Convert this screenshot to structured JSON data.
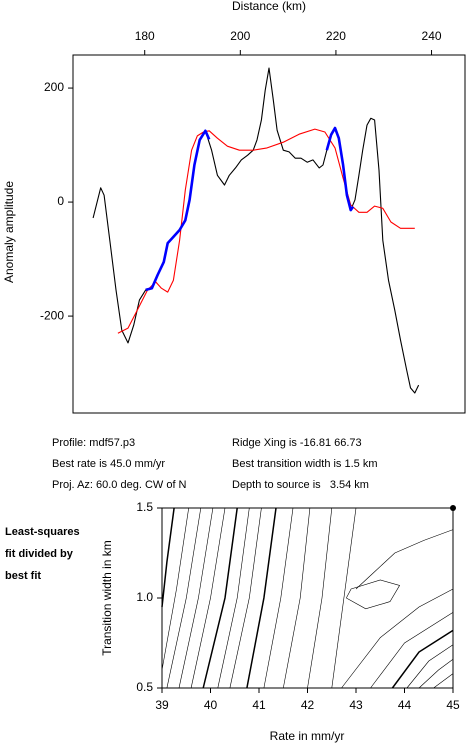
{
  "chart_data": [
    {
      "type": "line",
      "xlabel": "Distance (km)",
      "ylabel": "Anomaly amplitude",
      "xlim": [
        165,
        247
      ],
      "ylim": [
        -370,
        258
      ],
      "xticks": [
        180,
        200,
        220,
        240
      ],
      "yticks": [
        -200,
        0,
        200
      ],
      "series": [
        {
          "color": "#000000",
          "x": [
            169.2,
            170.8,
            171.5,
            172.7,
            174,
            175.2,
            176.5,
            177.7,
            178.9,
            180.2,
            181.5,
            182.7,
            184,
            184.8,
            186,
            187.3,
            188.5,
            189.4,
            190.4,
            191.5,
            192.7,
            194,
            195.2,
            196.7,
            197.7,
            199,
            200.2,
            201.5,
            202.7,
            203.5,
            204.4,
            205.2,
            206,
            206.9,
            207.7,
            209,
            210.2,
            211.5,
            212.7,
            214,
            215.2,
            216.5,
            217.3,
            218.1,
            219,
            219.8,
            220.6,
            221.5,
            222.3,
            223.1,
            224,
            224.8,
            225.6,
            226.5,
            227.3,
            228.1,
            229,
            229.8,
            231,
            232.3,
            233.5,
            234.8,
            235.6,
            236.5,
            237.3
          ],
          "values": [
            -28,
            25,
            12,
            -67,
            -154,
            -225,
            -247,
            -216,
            -172,
            -154,
            -151,
            -128,
            -105,
            -72,
            -61,
            -49,
            -32,
            4,
            65,
            109,
            125,
            91,
            47,
            30,
            47,
            60,
            74,
            82,
            91,
            109,
            144,
            196,
            235,
            179,
            126,
            91,
            88,
            77,
            77,
            70,
            74,
            60,
            65,
            91,
            118,
            130,
            112,
            65,
            12,
            -14,
            4,
            47,
            91,
            135,
            147,
            144,
            56,
            -67,
            -137,
            -189,
            -242,
            -295,
            -326,
            -335,
            -321
          ]
        },
        {
          "color": "#ff0000",
          "x": [
            174.4,
            176.5,
            178.5,
            180.6,
            182.3,
            183.5,
            184.8,
            186,
            187.3,
            188.5,
            189.8,
            191,
            192.3,
            193.5,
            195.2,
            197.3,
            199.8,
            202.7,
            205.6,
            209,
            212.3,
            215.6,
            217.7,
            219.8,
            221.5,
            223.1,
            224.8,
            226.5,
            228.1,
            229.8,
            231.5,
            233.5,
            236.5
          ],
          "values": [
            -230,
            -221,
            -189,
            -154,
            -140,
            -151,
            -158,
            -137,
            -67,
            21,
            91,
            116,
            123,
            125,
            112,
            98,
            91,
            91,
            95,
            105,
            119,
            128,
            123,
            95,
            42,
            -5,
            -18,
            -18,
            -7,
            -11,
            -35,
            -46,
            -46
          ]
        },
        {
          "color": "#0000ff",
          "x": [
            180.2,
            181.5,
            182.7,
            184,
            184.8,
            186,
            187.3,
            188.5,
            189.4,
            190.4,
            191.5,
            192.7,
            193.5,
            206,
            218.1,
            219,
            219.8,
            220.6,
            221.5,
            222.3,
            223.1,
            223.6
          ],
          "values": [
            -154,
            -151,
            -128,
            -105,
            -72,
            -61,
            -49,
            -32,
            4,
            65,
            109,
            125,
            110,
            null,
            91,
            118,
            130,
            112,
            65,
            12,
            -14,
            -8
          ]
        }
      ],
      "annotations": [
        "Profile: mdf57.p3",
        "Ridge Xing is -16.81 66.73",
        "Best rate is 45.0 mm/yr",
        "Best transition width is 1.5 km",
        "Proj. Az: 60.0 deg. CW of N",
        "Depth to source is   3.54 km"
      ]
    },
    {
      "type": "contour",
      "xlabel": "Rate in mm/yr",
      "ylabel": "Transition width in km",
      "side_label": [
        "Least-squares",
        "fit divided by",
        "best fit"
      ],
      "xlim": [
        39,
        45
      ],
      "ylim": [
        0.5,
        1.5
      ],
      "xticks": [
        39,
        40,
        41,
        42,
        43,
        44,
        45
      ],
      "yticks": [
        0.5,
        {
          "value": 1,
          "label": "1.0"
        },
        1.5
      ],
      "color": "#000000",
      "lines": [
        {
          "bold": true,
          "x": [
            39,
            39.1,
            39.25
          ],
          "values": [
            0.95,
            1.2,
            1.5
          ]
        },
        {
          "bold": false,
          "x": [
            39,
            39.3,
            39.55
          ],
          "values": [
            0.6,
            1.05,
            1.5
          ]
        },
        {
          "bold": false,
          "x": [
            39.1,
            39.5,
            39.8
          ],
          "values": [
            0.5,
            1.0,
            1.5
          ]
        },
        {
          "bold": false,
          "x": [
            39.35,
            39.75,
            40.05
          ],
          "values": [
            0.5,
            1.0,
            1.5
          ]
        },
        {
          "bold": false,
          "x": [
            39.6,
            40.0,
            40.3
          ],
          "values": [
            0.5,
            1.0,
            1.5
          ]
        },
        {
          "bold": true,
          "x": [
            39.85,
            40.3,
            40.55
          ],
          "values": [
            0.5,
            1.0,
            1.5
          ]
        },
        {
          "bold": false,
          "x": [
            40.15,
            40.55,
            40.8
          ],
          "values": [
            0.5,
            1.0,
            1.5
          ]
        },
        {
          "bold": false,
          "x": [
            40.4,
            40.8,
            41.05
          ],
          "values": [
            0.5,
            1.0,
            1.5
          ]
        },
        {
          "bold": true,
          "x": [
            40.75,
            41.1,
            41.35
          ],
          "values": [
            0.5,
            1.0,
            1.5
          ]
        },
        {
          "bold": false,
          "x": [
            41.1,
            41.45,
            41.7
          ],
          "values": [
            0.5,
            1.0,
            1.5
          ]
        },
        {
          "bold": false,
          "x": [
            41.5,
            41.85,
            42.05
          ],
          "values": [
            0.5,
            1.0,
            1.5
          ]
        },
        {
          "bold": false,
          "x": [
            42.0,
            42.3,
            42.5
          ],
          "values": [
            0.5,
            1.0,
            1.5
          ]
        },
        {
          "bold": false,
          "x": [
            42.5,
            42.75,
            43.0
          ],
          "values": [
            0.5,
            1.0,
            1.5
          ]
        },
        {
          "bold": false,
          "x": [
            43.0,
            43.4,
            43.8,
            44.4,
            45
          ],
          "values": [
            1.05,
            1.15,
            1.25,
            1.32,
            1.38
          ]
        },
        {
          "bold": false,
          "x": [
            42.8,
            43.2,
            43.7,
            43.9,
            43.5,
            42.9,
            42.8
          ],
          "values": [
            1.0,
            0.94,
            0.98,
            1.07,
            1.1,
            1.05,
            1.0
          ]
        },
        {
          "bold": false,
          "x": [
            42.7,
            43.5,
            44.3,
            45
          ],
          "values": [
            0.5,
            0.78,
            0.95,
            1.05
          ]
        },
        {
          "bold": false,
          "x": [
            43.3,
            44.0,
            45
          ],
          "values": [
            0.5,
            0.75,
            0.92
          ]
        },
        {
          "bold": true,
          "x": [
            43.75,
            44.3,
            45
          ],
          "values": [
            0.5,
            0.7,
            0.82
          ]
        },
        {
          "bold": false,
          "x": [
            44.05,
            44.5,
            45
          ],
          "values": [
            0.5,
            0.65,
            0.74
          ]
        },
        {
          "bold": false,
          "x": [
            44.3,
            44.7,
            45
          ],
          "values": [
            0.5,
            0.6,
            0.66
          ]
        },
        {
          "bold": false,
          "x": [
            44.6,
            45
          ],
          "values": [
            0.5,
            0.58
          ]
        }
      ],
      "point": {
        "x": 45,
        "y": 1.5
      }
    }
  ]
}
